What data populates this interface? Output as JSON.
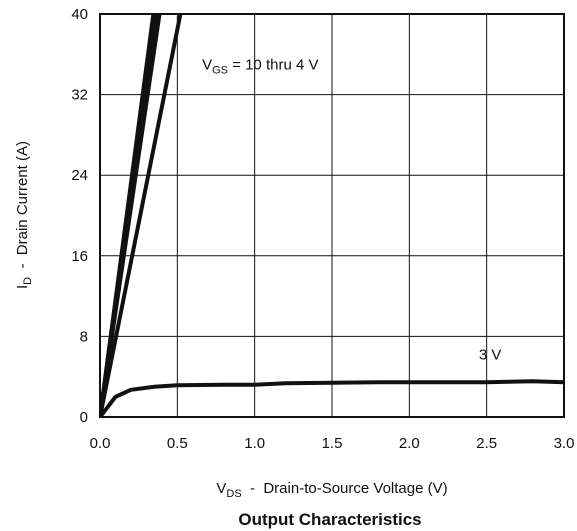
{
  "chart_data": {
    "type": "line",
    "title": "Output Characteristics",
    "xlabel": {
      "main": "V",
      "sub": "DS",
      "rest": "  -  Drain-to-Source Voltage (V)"
    },
    "ylabel": {
      "main": "I",
      "sub": "D",
      "rest": "  -  Drain Current (A)"
    },
    "xlim": [
      0,
      3.0
    ],
    "ylim": [
      0,
      40
    ],
    "xticks": [
      "0.0",
      "0.5",
      "1.0",
      "1.5",
      "2.0",
      "2.5",
      "3.0"
    ],
    "yticks": [
      "0",
      "8",
      "16",
      "24",
      "32",
      "40"
    ],
    "grid": true,
    "annotations": [
      {
        "main": "V",
        "sub": "GS",
        "rest": " = 10 thru 4 V",
        "x": 0.66,
        "y": 34.5
      },
      {
        "text": "3 V",
        "x": 2.45,
        "y": 5.7
      }
    ],
    "series": [
      {
        "label": "10 thru 4 V",
        "x": [
          0,
          0.345
        ],
        "y": [
          0,
          40
        ]
      },
      {
        "x": [
          0,
          0.355
        ],
        "y": [
          0,
          40
        ]
      },
      {
        "x": [
          0,
          0.365
        ],
        "y": [
          0,
          40
        ]
      },
      {
        "x": [
          0,
          0.375
        ],
        "y": [
          0,
          40
        ]
      },
      {
        "x": [
          0,
          0.385
        ],
        "y": [
          0,
          40
        ]
      },
      {
        "x": [
          0,
          0.52
        ],
        "y": [
          0,
          40
        ]
      },
      {
        "label": "3 V",
        "x": [
          0,
          0.05,
          0.1,
          0.2,
          0.35,
          0.5,
          0.8,
          1.0,
          1.2,
          1.5,
          1.8,
          2.0,
          2.5,
          2.8,
          3.0
        ],
        "y": [
          0,
          1.0,
          2.0,
          2.7,
          3.0,
          3.15,
          3.2,
          3.2,
          3.35,
          3.4,
          3.45,
          3.45,
          3.45,
          3.55,
          3.45
        ]
      }
    ]
  }
}
